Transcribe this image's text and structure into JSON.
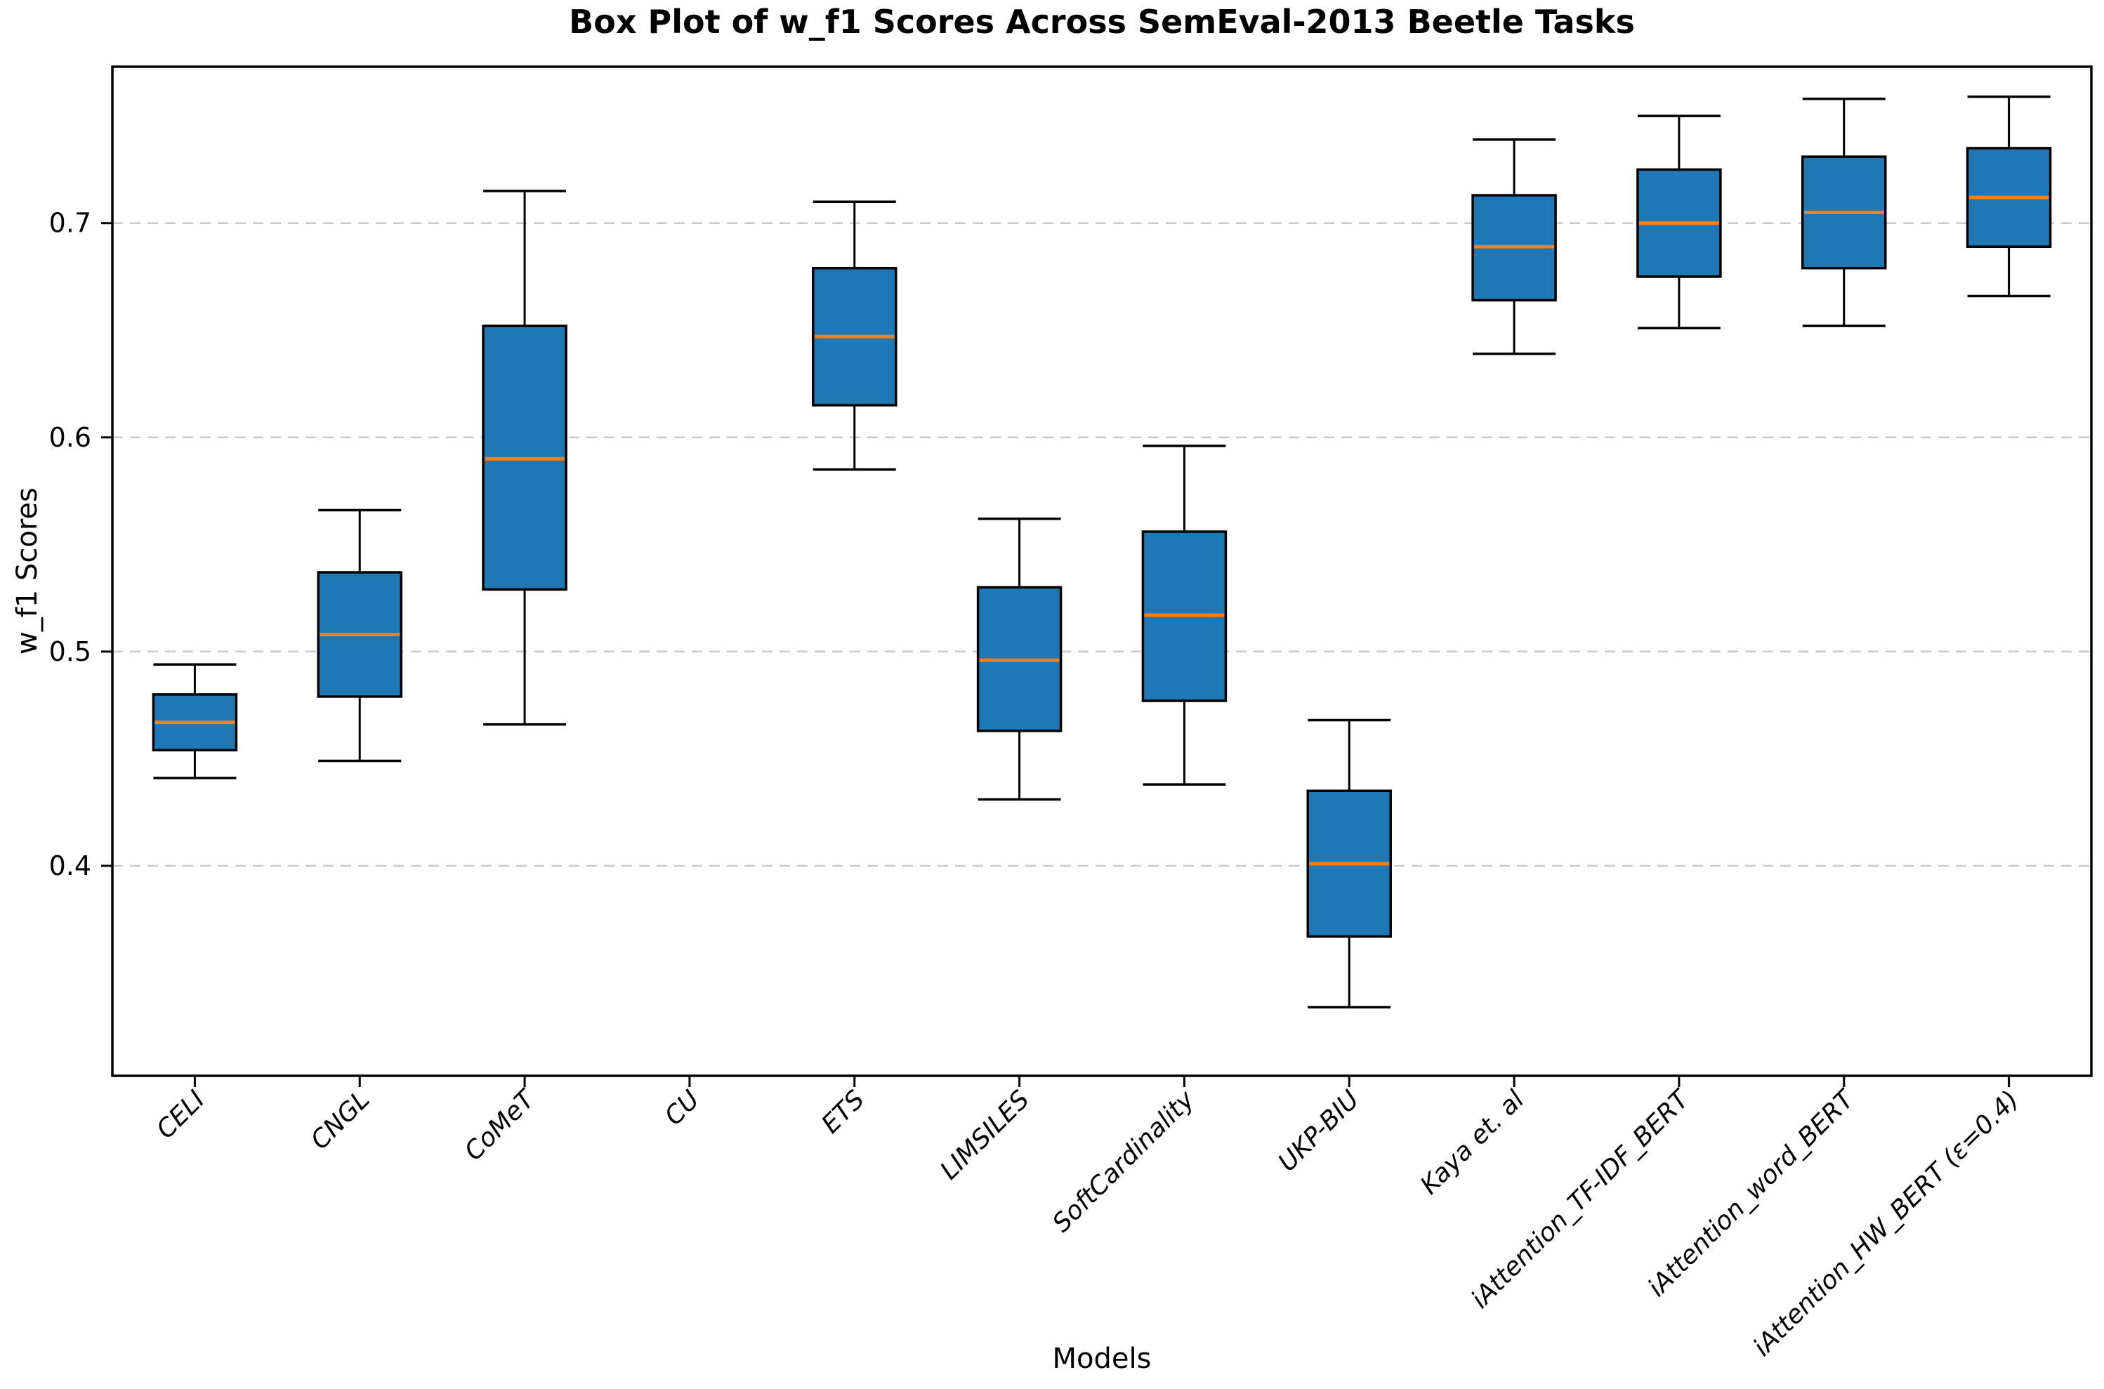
{
  "chart_data": {
    "type": "box",
    "title": "Box Plot of w_f1 Scores Across SemEval-2013 Beetle Tasks",
    "xlabel": "Models",
    "ylabel": "w_f1 Scores",
    "ylim": [
      0.302,
      0.773
    ],
    "yticks": [
      0.4,
      0.5,
      0.6,
      0.7
    ],
    "grid": "horizontal-dashed",
    "legend": "none",
    "box_fill_color": "#1f77b4",
    "median_color": "#ff7f0e",
    "edge_color": "#000000",
    "gridline_color": "#c9c9c9",
    "categories": [
      "CELI",
      "CNGL",
      "CoMeT",
      "CU",
      "ETS",
      "LIMSILES",
      "SoftCardinality",
      "UKP-BIU",
      "Kaya et. al",
      "iAttention_TF-IDF_BERT",
      "iAttention_word_BERT",
      "iAttention_HW_BERT (ε=0.4)"
    ],
    "series": [
      {
        "label": "CELI",
        "whislo": 0.441,
        "q1": 0.454,
        "med": 0.467,
        "q3": 0.48,
        "whishi": 0.494
      },
      {
        "label": "CNGL",
        "whislo": 0.449,
        "q1": 0.479,
        "med": 0.508,
        "q3": 0.537,
        "whishi": 0.566
      },
      {
        "label": "CoMeT",
        "whislo": 0.466,
        "q1": 0.529,
        "med": 0.59,
        "q3": 0.652,
        "whishi": 0.715
      },
      {
        "label": "CU",
        "whislo": null,
        "q1": null,
        "med": null,
        "q3": null,
        "whishi": null
      },
      {
        "label": "ETS",
        "whislo": 0.585,
        "q1": 0.615,
        "med": 0.647,
        "q3": 0.679,
        "whishi": 0.71
      },
      {
        "label": "LIMSILES",
        "whislo": 0.431,
        "q1": 0.463,
        "med": 0.496,
        "q3": 0.53,
        "whishi": 0.562
      },
      {
        "label": "SoftCardinality",
        "whislo": 0.438,
        "q1": 0.477,
        "med": 0.517,
        "q3": 0.556,
        "whishi": 0.596
      },
      {
        "label": "UKP-BIU",
        "whislo": 0.334,
        "q1": 0.367,
        "med": 0.401,
        "q3": 0.435,
        "whishi": 0.468
      },
      {
        "label": "Kaya et. al",
        "whislo": 0.639,
        "q1": 0.664,
        "med": 0.689,
        "q3": 0.713,
        "whishi": 0.739
      },
      {
        "label": "iAttention_TF-IDF_BERT",
        "whislo": 0.651,
        "q1": 0.675,
        "med": 0.7,
        "q3": 0.725,
        "whishi": 0.75
      },
      {
        "label": "iAttention_word_BERT",
        "whislo": 0.652,
        "q1": 0.679,
        "med": 0.705,
        "q3": 0.731,
        "whishi": 0.758
      },
      {
        "label": "iAttention_HW_BERT (ε=0.4)",
        "whislo": 0.666,
        "q1": 0.689,
        "med": 0.712,
        "q3": 0.735,
        "whishi": 0.759
      }
    ]
  }
}
